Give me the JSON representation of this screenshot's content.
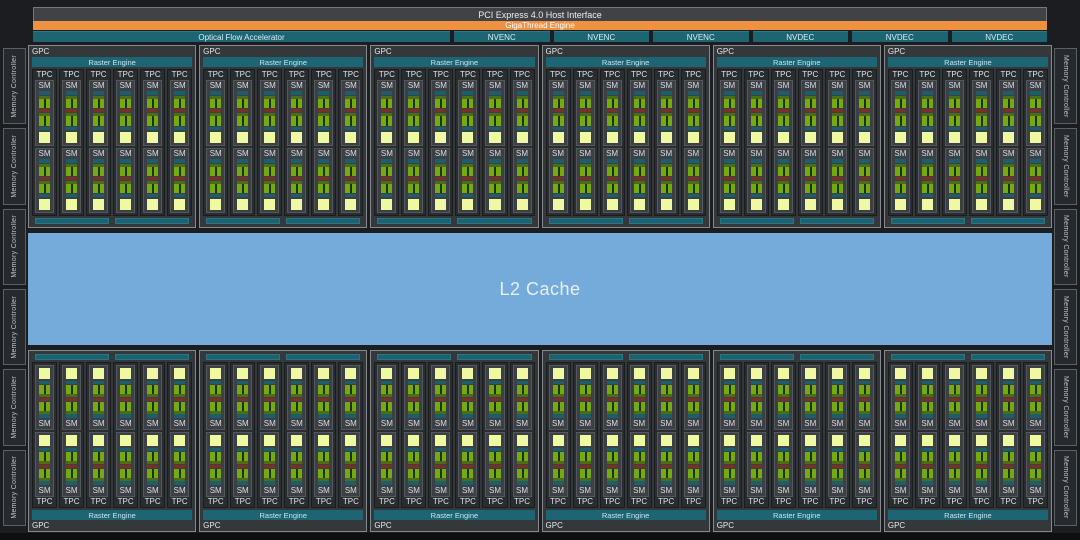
{
  "header": {
    "pci_label": "PCI Express 4.0 Host Interface",
    "gigathread_label": "GigaThread Engine",
    "ofa_label": "Optical Flow Accelerator",
    "codec_units": [
      "NVENC",
      "NVENC",
      "NVENC",
      "NVDEC",
      "NVDEC",
      "NVDEC"
    ]
  },
  "l2_cache": {
    "label": "L2 Cache"
  },
  "memory": {
    "label": "Memory Controller",
    "left_count": 6,
    "right_count": 6
  },
  "gpc_grid": {
    "gpc_label": "GPC",
    "raster_engine_label": "Raster Engine",
    "tpc_label": "TPC",
    "sm_label": "SM",
    "top_gpc_count": 6,
    "bottom_gpc_count": 6,
    "tpc_per_gpc": 6,
    "sm_per_tpc": 2,
    "sub_bars_per_gpc": 2
  },
  "colors": {
    "gigathread_orange": "#ef9140",
    "media_teal": "#1d6573",
    "sm_teal": "#1a5f6d",
    "sm_green": "#73ab10",
    "sm_green_dark": "#4d6d15",
    "sm_yellow": "#eff9a2",
    "sm_red": "#7c2f26",
    "l2_blue": "#74abdb"
  }
}
